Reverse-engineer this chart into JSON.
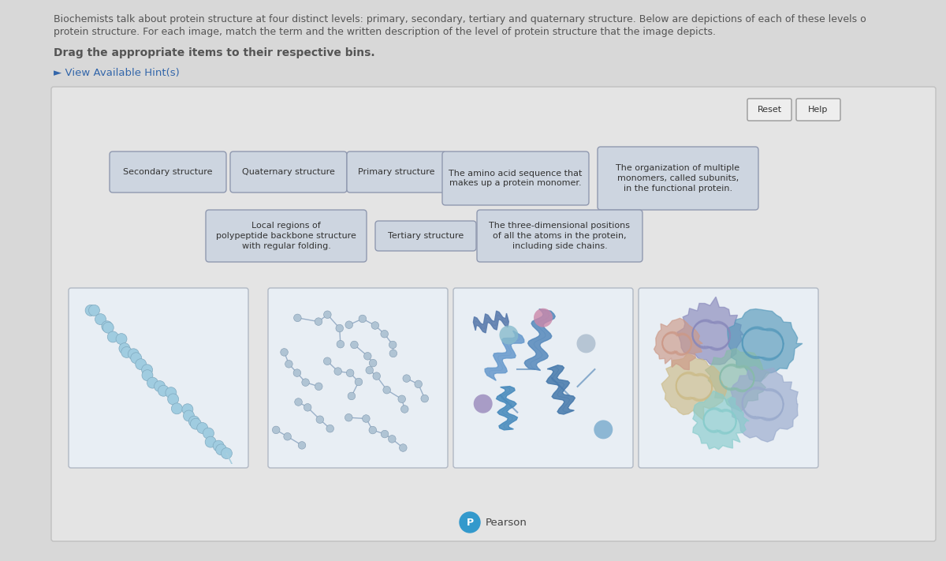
{
  "bg_color": "#d8d8d8",
  "panel_bg": "#e4e4e4",
  "panel_border": "#c0c0c0",
  "title_line1": "Biochemists talk about protein structure at four distinct levels: primary, secondary, tertiary and quaternary structure. Below are depictions of each of these levels o",
  "title_line2": "protein structure. For each image, match the term and the written description of the level of protein structure that the image depicts.",
  "drag_text": "Drag the appropriate items to their respective bins.",
  "hint_text": "► View Available Hint(s)",
  "text_color": "#555555",
  "hint_color": "#3366aa",
  "box_bg": "#cdd5e0",
  "box_border": "#9099b0",
  "box_text_color": "#333333",
  "img_box_bg": "#e8eef4",
  "img_box_border": "#b0b8c4",
  "btn_bg": "#eeeeee",
  "btn_border": "#999999",
  "pearson_circle_color": "#3399cc",
  "pearson_text_color": "#444444"
}
